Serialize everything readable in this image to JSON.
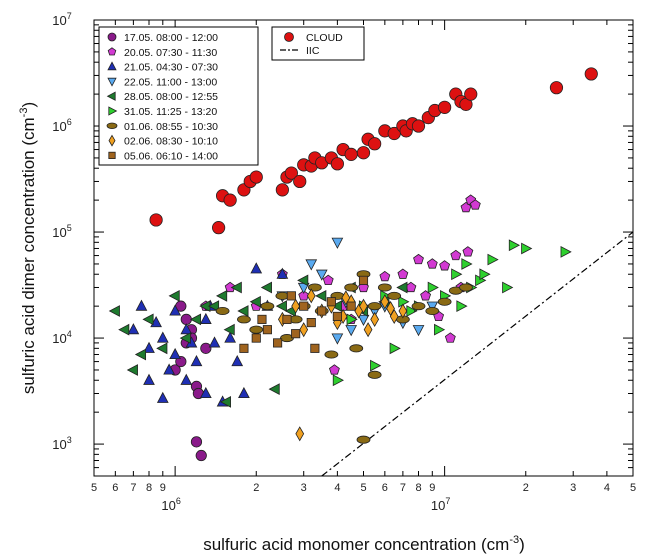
{
  "chart_data": {
    "type": "scatter",
    "title": "",
    "xlabel": "sulfuric acid monomer concentration (cm",
    "xlabel_sup": "-3",
    "xlabel_end": ")",
    "ylabel": "sulfuric acid dimer concentration (cm",
    "ylabel_sup": "-3",
    "ylabel_end": ")",
    "xscale": "log",
    "yscale": "log",
    "xlim": [
      500000,
      50000000
    ],
    "ylim": [
      500,
      10000000
    ],
    "x_major_ticks": [
      {
        "value": 1000000,
        "base": "10",
        "exp": "6"
      },
      {
        "value": 10000000,
        "base": "10",
        "exp": "7"
      }
    ],
    "x_minor_ticks": [
      {
        "value": 500000,
        "label": "5"
      },
      {
        "value": 600000,
        "label": "6"
      },
      {
        "value": 700000,
        "label": "7"
      },
      {
        "value": 800000,
        "label": "8"
      },
      {
        "value": 900000,
        "label": "9"
      },
      {
        "value": 2000000,
        "label": "2"
      },
      {
        "value": 3000000,
        "label": "3"
      },
      {
        "value": 4000000,
        "label": "4"
      },
      {
        "value": 5000000,
        "label": "5"
      },
      {
        "value": 6000000,
        "label": "6"
      },
      {
        "value": 7000000,
        "label": "7"
      },
      {
        "value": 8000000,
        "label": "8"
      },
      {
        "value": 9000000,
        "label": "9"
      },
      {
        "value": 20000000,
        "label": "2"
      },
      {
        "value": 30000000,
        "label": "3"
      },
      {
        "value": 40000000,
        "label": "4"
      },
      {
        "value": 50000000,
        "label": "5"
      }
    ],
    "y_major_ticks": [
      {
        "value": 1000,
        "base": "10",
        "exp": "3"
      },
      {
        "value": 10000,
        "base": "10",
        "exp": "4"
      },
      {
        "value": 100000,
        "base": "10",
        "exp": "5"
      },
      {
        "value": 1000000,
        "base": "10",
        "exp": "6"
      },
      {
        "value": 10000000,
        "base": "10",
        "exp": "7"
      }
    ],
    "legend_campaign": {
      "placement": "top-left",
      "entries": [
        {
          "label": "17.05. 08:00 - 12:00",
          "marker": "circle",
          "color": "#8a1a8a"
        },
        {
          "label": "20.05. 07:30 - 11:30",
          "marker": "pentagon",
          "color": "#d23ad2"
        },
        {
          "label": "21.05. 04:30 - 07:30",
          "marker": "triangle-up",
          "color": "#1f2fb4"
        },
        {
          "label": "22.05. 11:00 - 13:00",
          "marker": "triangle-down",
          "color": "#5aaaf0"
        },
        {
          "label": "28.05. 08:00 - 12:55",
          "marker": "triangle-left",
          "color": "#1e7a2e"
        },
        {
          "label": "31.05. 11:25 - 13:20",
          "marker": "triangle-right",
          "color": "#2ed02e"
        },
        {
          "label": "01.06. 08:55 - 10:30",
          "marker": "ellipse",
          "color": "#8a6a14"
        },
        {
          "label": "02.06. 08:30 - 10:10",
          "marker": "diamond",
          "color": "#f0a020"
        },
        {
          "label": "05.06. 06:10 - 14:00",
          "marker": "square",
          "color": "#a0641e"
        }
      ]
    },
    "legend_cloud": {
      "placement": "top-center",
      "entries": [
        {
          "label": "CLOUD",
          "marker": "circle",
          "color": "#dd1111"
        },
        {
          "label": "IIC",
          "marker": "dash-dot",
          "color": "#000000"
        }
      ]
    },
    "reference_line": {
      "name": "IIC",
      "x": [
        3500000,
        50000000
      ],
      "y": [
        500,
        100000
      ]
    },
    "series": [
      {
        "name": "CLOUD",
        "marker": "circle",
        "color": "#dd1111",
        "x": [
          850000,
          1450000,
          1500000,
          1600000,
          1800000,
          1900000,
          2000000,
          2500000,
          2600000,
          2700000,
          2900000,
          3000000,
          3200000,
          3300000,
          3500000,
          3800000,
          4000000,
          4200000,
          4500000,
          5000000,
          5200000,
          5500000,
          6000000,
          6500000,
          7000000,
          7200000,
          7600000,
          8000000,
          8700000,
          9200000,
          10000000,
          11000000,
          11500000,
          12000000,
          12500000,
          26000000,
          35000000
        ],
        "y": [
          130000,
          110000,
          220000,
          200000,
          250000,
          300000,
          330000,
          250000,
          330000,
          360000,
          300000,
          430000,
          420000,
          500000,
          450000,
          500000,
          440000,
          600000,
          540000,
          560000,
          750000,
          680000,
          900000,
          850000,
          1000000,
          900000,
          1050000,
          1000000,
          1200000,
          1400000,
          1500000,
          2000000,
          1700000,
          1600000,
          2000000,
          2300000,
          3100000
        ]
      },
      {
        "name": "17.05. 08:00 - 12:00",
        "marker": "circle",
        "color": "#8a1a8a",
        "x": [
          1000000,
          1050000,
          1100000,
          1150000,
          1200000,
          1200000,
          1250000,
          1300000,
          1050000,
          1150000,
          1220000,
          1100000
        ],
        "y": [
          5000,
          6000,
          15000,
          12000,
          3500,
          1050,
          780,
          8000,
          20000,
          10000,
          3000,
          9000
        ]
      },
      {
        "name": "20.05. 07:30 - 11:30",
        "marker": "pentagon",
        "color": "#d23ad2",
        "x": [
          1300000,
          1600000,
          2000000,
          2500000,
          3000000,
          3700000,
          4200000,
          5000000,
          6000000,
          7000000,
          7500000,
          8000000,
          9000000,
          10000000,
          11000000,
          12000000,
          12500000,
          13000000,
          8500000,
          9500000,
          11500000,
          3900000,
          4500000,
          10500000,
          12200000
        ],
        "y": [
          20000,
          30000,
          20000,
          40000,
          25000,
          35000,
          20000,
          30000,
          38000,
          40000,
          30000,
          55000,
          50000,
          48000,
          60000,
          170000,
          200000,
          180000,
          25000,
          16000,
          30000,
          5000,
          15000,
          10000,
          65000
        ]
      },
      {
        "name": "21.05. 04:30 - 07:30",
        "marker": "triangle-up",
        "color": "#1f2fb4",
        "x": [
          700000,
          750000,
          800000,
          850000,
          900000,
          900000,
          950000,
          1000000,
          1000000,
          1100000,
          1100000,
          1200000,
          1300000,
          1300000,
          1400000,
          1500000,
          1600000,
          1700000,
          1800000,
          2000000,
          2200000,
          2500000,
          800000,
          1150000,
          1350000
        ],
        "y": [
          12000,
          20000,
          8000,
          14000,
          10000,
          2700,
          5000,
          7000,
          18000,
          4000,
          12000,
          6000,
          3000,
          15000,
          9000,
          2500,
          10000,
          6000,
          3000,
          45000,
          20000,
          40000,
          4000,
          9000,
          20000
        ]
      },
      {
        "name": "22.05. 11:00 - 13:00",
        "marker": "triangle-down",
        "color": "#5aaaf0",
        "x": [
          2500000,
          3000000,
          3500000,
          4000000,
          4000000,
          4500000,
          5000000,
          5500000,
          6000000,
          7000000,
          8000000,
          9000000,
          3200000,
          4300000
        ],
        "y": [
          25000,
          30000,
          40000,
          80000,
          10000,
          12000,
          15000,
          18000,
          20000,
          14000,
          12000,
          20000,
          50000,
          22000
        ]
      },
      {
        "name": "28.05. 08:00 - 12:55",
        "marker": "triangle-left",
        "color": "#1e7a2e",
        "x": [
          600000,
          650000,
          700000,
          750000,
          800000,
          900000,
          1000000,
          1100000,
          1200000,
          1300000,
          1400000,
          1500000,
          1600000,
          1700000,
          1800000,
          2000000,
          2200000,
          2500000,
          2700000,
          3000000,
          3500000,
          4000000,
          4500000,
          5000000,
          6000000,
          7000000,
          1550000,
          2350000
        ],
        "y": [
          18000,
          12000,
          5000,
          7000,
          15000,
          8000,
          25000,
          10000,
          15000,
          20000,
          20000,
          25000,
          12000,
          30000,
          18000,
          22000,
          30000,
          20000,
          18000,
          35000,
          25000,
          20000,
          30000,
          18000,
          22000,
          30000,
          2500,
          3300
        ]
      },
      {
        "name": "31.05. 11:25 - 13:20",
        "marker": "triangle-right",
        "color": "#2ed02e",
        "x": [
          4000000,
          4500000,
          5000000,
          6000000,
          7000000,
          7500000,
          8000000,
          9000000,
          10000000,
          11000000,
          12000000,
          12500000,
          13500000,
          15000000,
          18000000,
          20000000,
          28000000,
          17000000,
          14000000,
          9500000,
          6500000,
          11500000,
          5500000
        ],
        "y": [
          4000,
          15000,
          20000,
          25000,
          22000,
          18000,
          20000,
          30000,
          25000,
          40000,
          50000,
          30000,
          35000,
          55000,
          75000,
          70000,
          65000,
          30000,
          40000,
          12000,
          8000,
          20000,
          5500
        ]
      },
      {
        "name": "01.06. 08:55 - 10:30",
        "marker": "ellipse",
        "color": "#8a6a14",
        "x": [
          1500000,
          1800000,
          2000000,
          2200000,
          2500000,
          2800000,
          3000000,
          3300000,
          3500000,
          4000000,
          4500000,
          5000000,
          5500000,
          6000000,
          6500000,
          7000000,
          8000000,
          9000000,
          10000000,
          11000000,
          12000000,
          5000000,
          5500000,
          2600000,
          3800000,
          4700000
        ],
        "y": [
          18000,
          15000,
          12000,
          20000,
          25000,
          15000,
          20000,
          30000,
          18000,
          25000,
          30000,
          40000,
          20000,
          30000,
          25000,
          15000,
          20000,
          18000,
          22000,
          28000,
          30000,
          1100,
          4500,
          10000,
          7000,
          8000
        ]
      },
      {
        "name": "02.06. 08:30 - 10:10",
        "marker": "diamond",
        "color": "#f0a020",
        "x": [
          2500000,
          2800000,
          3000000,
          3200000,
          3500000,
          3800000,
          4000000,
          4200000,
          4500000,
          4800000,
          5000000,
          5500000,
          6000000,
          6500000,
          7000000,
          2900000,
          4300000,
          5200000,
          6300000
        ],
        "y": [
          15000,
          20000,
          12000,
          25000,
          18000,
          20000,
          14000,
          16000,
          22000,
          18000,
          20000,
          15000,
          22000,
          16000,
          18000,
          1250,
          24000,
          12000,
          19000
        ]
      },
      {
        "name": "05.06. 06:10 - 14:00",
        "marker": "square",
        "color": "#a0641e",
        "x": [
          1800000,
          2000000,
          2200000,
          2400000,
          2600000,
          2800000,
          3000000,
          3200000,
          3500000,
          3800000,
          4000000,
          4500000,
          5000000,
          2100000,
          2700000,
          3300000
        ],
        "y": [
          8000,
          10000,
          12000,
          9000,
          15000,
          11000,
          20000,
          14000,
          18000,
          22000,
          16000,
          20000,
          35000,
          15000,
          25000,
          8000
        ]
      }
    ]
  }
}
